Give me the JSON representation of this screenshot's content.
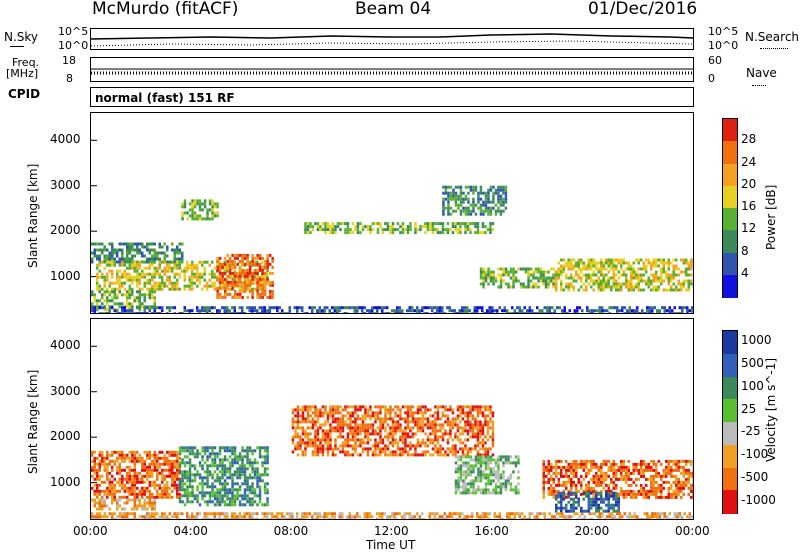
{
  "header": {
    "station": "McMurdo (fitACF)",
    "beam": "Beam 04",
    "date": "01/Dec/2016"
  },
  "side_labels": {
    "nsky": "N.Sky",
    "freq": "Freq.",
    "freq_unit": "[MHz]",
    "cpid": "CPID",
    "nsearch": "N.Search",
    "nave": "Nave"
  },
  "strip_ticks": {
    "nsky_left_top": "10^5",
    "nsky_left_bottom": "10^0",
    "nsky_right_top": "10^5",
    "nsky_right_bottom": "10^0",
    "freq_top": "18",
    "freq_bottom": "8",
    "nave_top": "60",
    "nave_bottom": "0"
  },
  "cpid_text": "normal (fast) 151 RF",
  "chart_data": [
    {
      "type": "heatmap",
      "name": "power",
      "ylabel": "Slant Range [km]",
      "xlabel": "",
      "y_ticks": [
        "1000",
        "2000",
        "3000",
        "4000"
      ],
      "ylim": [
        200,
        4600
      ],
      "colorbar_label": "Power [dB]",
      "colorbar_ticks": [
        "4",
        "8",
        "12",
        "16",
        "20",
        "24",
        "28"
      ],
      "colorbar_range": [
        0,
        30
      ],
      "colors": [
        "#1010e0",
        "#2f55b0",
        "#3a8a5a",
        "#58b030",
        "#e8d020",
        "#f5a020",
        "#f07010",
        "#e02010"
      ],
      "bands": [
        {
          "x_start": 0.0,
          "x_end": 3.6,
          "y_start": 1350,
          "y_end": 1750,
          "level": 2
        },
        {
          "x_start": 0.2,
          "x_end": 7.0,
          "y_start": 750,
          "y_end": 1350,
          "level": 4
        },
        {
          "x_start": 0.0,
          "x_end": 2.5,
          "y_start": 300,
          "y_end": 700,
          "level": 3
        },
        {
          "x_start": 5.0,
          "x_end": 7.2,
          "y_start": 550,
          "y_end": 1500,
          "level": 6
        },
        {
          "x_start": 3.6,
          "x_end": 5.0,
          "y_start": 2300,
          "y_end": 2700,
          "level": 3
        },
        {
          "x_start": 8.5,
          "x_end": 16.0,
          "y_start": 2000,
          "y_end": 2200,
          "level": 3
        },
        {
          "x_start": 14.0,
          "x_end": 16.5,
          "y_start": 2400,
          "y_end": 3000,
          "level": 2
        },
        {
          "x_start": 15.5,
          "x_end": 18.5,
          "y_start": 800,
          "y_end": 1200,
          "level": 3
        },
        {
          "x_start": 18.5,
          "x_end": 24.0,
          "y_start": 700,
          "y_end": 1400,
          "level": 4
        },
        {
          "x_start": 0.0,
          "x_end": 24.0,
          "y_start": 200,
          "y_end": 350,
          "level": 1
        }
      ]
    },
    {
      "type": "heatmap",
      "name": "velocity",
      "ylabel": "Slant Range [km]",
      "xlabel": "Time UT",
      "x_ticks": [
        "00:00",
        "04:00",
        "08:00",
        "12:00",
        "16:00",
        "20:00",
        "00:00"
      ],
      "y_ticks": [
        "1000",
        "2000",
        "3000",
        "4000"
      ],
      "ylim": [
        200,
        4600
      ],
      "colorbar_label": "Velocity [m s^-1]",
      "colorbar_ticks": [
        "1000",
        "500",
        "100",
        "25",
        "-25",
        "-100",
        "-500",
        "-1000"
      ],
      "colors": [
        "#1c3aa0",
        "#3060b8",
        "#3a8a5a",
        "#58c030",
        "#bbbbbb",
        "#f0a020",
        "#f07010",
        "#e01010"
      ],
      "bands": [
        {
          "x_start": 0.0,
          "x_end": 3.5,
          "y_start": 700,
          "y_end": 1700,
          "level": 6
        },
        {
          "x_start": 3.5,
          "x_end": 7.0,
          "y_start": 500,
          "y_end": 1800,
          "level": 2
        },
        {
          "x_start": 0.0,
          "x_end": 2.5,
          "y_start": 400,
          "y_end": 650,
          "level": 5
        },
        {
          "x_start": 8.0,
          "x_end": 16.0,
          "y_start": 1600,
          "y_end": 2700,
          "level": 6
        },
        {
          "x_start": 14.5,
          "x_end": 17.0,
          "y_start": 800,
          "y_end": 1600,
          "level": 3
        },
        {
          "x_start": 18.0,
          "x_end": 24.0,
          "y_start": 700,
          "y_end": 1500,
          "level": 6
        },
        {
          "x_start": 18.5,
          "x_end": 21.0,
          "y_start": 400,
          "y_end": 800,
          "level": 1
        },
        {
          "x_start": 0.0,
          "x_end": 24.0,
          "y_start": 200,
          "y_end": 350,
          "level": 5
        }
      ]
    }
  ]
}
